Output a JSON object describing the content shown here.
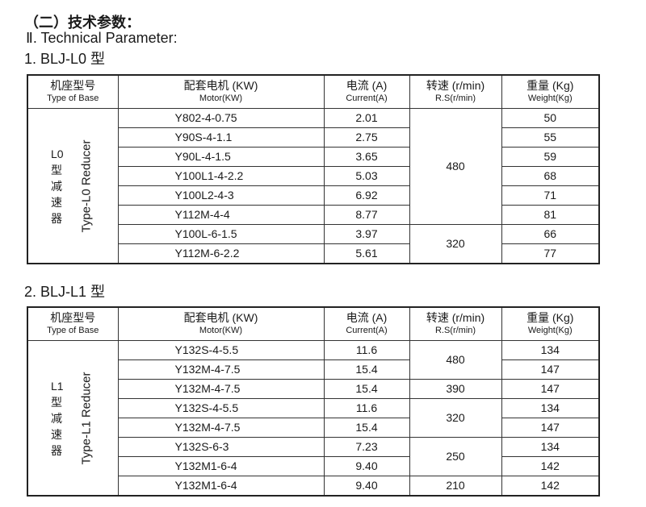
{
  "heading_cn": "（二）技术参数：",
  "heading_en": "Ⅱ. Technical Parameter:",
  "headers": {
    "base_cn": "机座型号",
    "base_en": "Type of Base",
    "motor_cn": "配套电机 (KW)",
    "motor_en": "Motor(KW)",
    "current_cn": "电流 (A)",
    "current_en": "Current(A)",
    "speed_cn": "转速 (r/min)",
    "speed_en": "R.S(r/min)",
    "weight_cn": "重量 (Kg)",
    "weight_en": "Weight(Kg)"
  },
  "tables": [
    {
      "title": "1. BLJ-L0 型",
      "base_cn": "L0型减速器",
      "base_en": "Type-L0 Reducer",
      "rows": [
        [
          "Y802-4-0.75",
          "2.01",
          "50"
        ],
        [
          "Y90S-4-1.1",
          "2.75",
          "55"
        ],
        [
          "Y90L-4-1.5",
          "3.65",
          "59"
        ],
        [
          "Y100L1-4-2.2",
          "5.03",
          "68"
        ],
        [
          "Y100L2-4-3",
          "6.92",
          "71"
        ],
        [
          "Y112M-4-4",
          "8.77",
          "81"
        ],
        [
          "Y100L-6-1.5",
          "3.97",
          "66"
        ],
        [
          "Y112M-6-2.2",
          "5.61",
          "77"
        ]
      ],
      "speeds": [
        {
          "value": "480",
          "span": 6
        },
        {
          "value": "320",
          "span": 2
        }
      ]
    },
    {
      "title": "2. BLJ-L1 型",
      "base_cn": "L1型减速器",
      "base_en": "Type-L1 Reducer",
      "rows": [
        [
          "Y132S-4-5.5",
          "11.6",
          "134"
        ],
        [
          "Y132M-4-7.5",
          "15.4",
          "147"
        ],
        [
          "Y132M-4-7.5",
          "15.4",
          "147"
        ],
        [
          "Y132S-4-5.5",
          "11.6",
          "134"
        ],
        [
          "Y132M-4-7.5",
          "15.4",
          "147"
        ],
        [
          "Y132S-6-3",
          "7.23",
          "134"
        ],
        [
          "Y132M1-6-4",
          "9.40",
          "142"
        ],
        [
          "Y132M1-6-4",
          "9.40",
          "142"
        ]
      ],
      "speeds": [
        {
          "value": "480",
          "span": 2
        },
        {
          "value": "390",
          "span": 1
        },
        {
          "value": "320",
          "span": 2
        },
        {
          "value": "250",
          "span": 2
        },
        {
          "value": "210",
          "span": 1
        }
      ]
    }
  ]
}
